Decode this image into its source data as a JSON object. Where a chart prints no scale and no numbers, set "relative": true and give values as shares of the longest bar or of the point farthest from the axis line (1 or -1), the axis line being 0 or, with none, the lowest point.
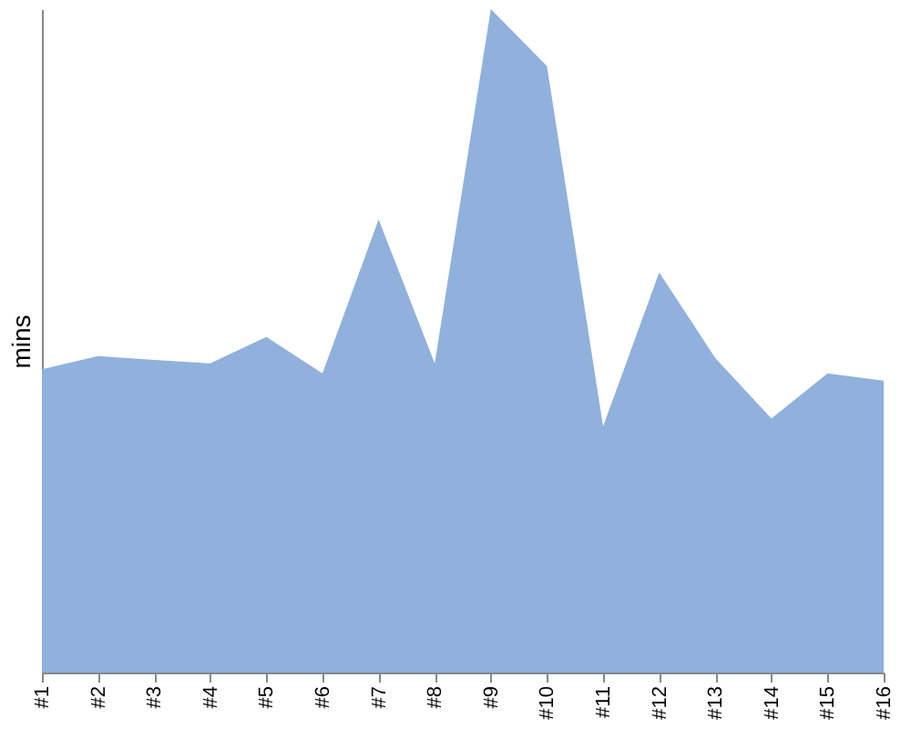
{
  "chart_data": {
    "type": "area",
    "ylabel": "mins",
    "relative": true,
    "categories": [
      "#1",
      "#2",
      "#3",
      "#4",
      "#5",
      "#6",
      "#7",
      "#8",
      "#9",
      "#10",
      "#11",
      "#12",
      "#13",
      "#14",
      "#15",
      "#16"
    ],
    "series": [
      {
        "color": "#8fb1db",
        "values": [
          0.457,
          0.477,
          0.471,
          0.466,
          0.506,
          0.451,
          0.683,
          0.466,
          1,
          0.914,
          0.371,
          0.603,
          0.474,
          0.383,
          0.451,
          0.44
        ]
      }
    ],
    "grid": false
  }
}
